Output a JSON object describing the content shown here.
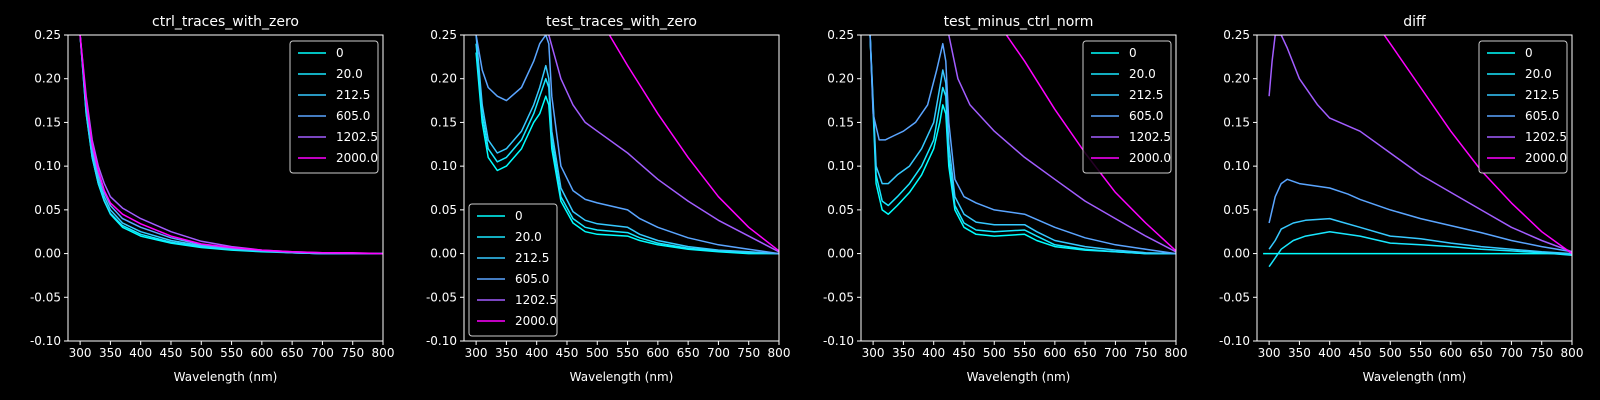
{
  "figure": {
    "background": "#000000",
    "foreground": "#ffffff"
  },
  "chart_data": [
    {
      "type": "line",
      "title": "ctrl_traces_with_zero",
      "xlabel": "Wavelength (nm)",
      "ylabel": "",
      "xlim": [
        280,
        800
      ],
      "ylim": [
        -0.1,
        0.25
      ],
      "xticks": [
        300,
        350,
        400,
        450,
        500,
        550,
        600,
        650,
        700,
        750,
        800
      ],
      "yticks": [
        -0.1,
        -0.05,
        0.0,
        0.05,
        0.1,
        0.15,
        0.2,
        0.25
      ],
      "legend": "upper right",
      "series": [
        {
          "name": "0",
          "color": "#00ffff",
          "x": [
            300,
            310,
            320,
            330,
            340,
            350,
            370,
            400,
            450,
            500,
            550,
            600,
            650,
            700,
            750,
            800
          ],
          "y": [
            0.25,
            0.16,
            0.11,
            0.08,
            0.06,
            0.045,
            0.03,
            0.02,
            0.012,
            0.007,
            0.004,
            0.002,
            0.001,
            0.0,
            0.0,
            0.0
          ]
        },
        {
          "name": "20.0",
          "color": "#18e7ff",
          "x": [
            300,
            310,
            320,
            330,
            340,
            350,
            370,
            400,
            450,
            500,
            550,
            600,
            650,
            700,
            750,
            800
          ],
          "y": [
            0.25,
            0.16,
            0.11,
            0.08,
            0.06,
            0.046,
            0.032,
            0.022,
            0.013,
            0.008,
            0.005,
            0.003,
            0.001,
            0.0,
            0.0,
            0.0
          ]
        },
        {
          "name": "212.5",
          "color": "#36c9ff",
          "x": [
            300,
            310,
            320,
            330,
            340,
            350,
            370,
            400,
            450,
            500,
            550,
            600,
            650,
            700,
            750,
            800
          ],
          "y": [
            0.25,
            0.165,
            0.115,
            0.085,
            0.065,
            0.05,
            0.035,
            0.025,
            0.015,
            0.009,
            0.005,
            0.003,
            0.001,
            0.0,
            0.0,
            0.0
          ]
        },
        {
          "name": "605.0",
          "color": "#5aa5ff",
          "x": [
            300,
            310,
            320,
            330,
            340,
            350,
            370,
            400,
            450,
            500,
            550,
            600,
            650,
            700,
            750,
            800
          ],
          "y": [
            0.25,
            0.17,
            0.12,
            0.09,
            0.07,
            0.055,
            0.04,
            0.03,
            0.018,
            0.01,
            0.006,
            0.003,
            0.001,
            0.0,
            0.0,
            0.0
          ]
        },
        {
          "name": "1202.5",
          "color": "#a25dff",
          "x": [
            300,
            310,
            320,
            330,
            340,
            350,
            370,
            400,
            450,
            500,
            550,
            600,
            650,
            700,
            750,
            800
          ],
          "y": [
            0.25,
            0.18,
            0.13,
            0.1,
            0.08,
            0.065,
            0.052,
            0.04,
            0.025,
            0.014,
            0.008,
            0.004,
            0.002,
            0.001,
            0.0,
            0.0
          ]
        },
        {
          "name": "2000.0",
          "color": "#ff00ff",
          "x": [
            300,
            310,
            320,
            330,
            340,
            350,
            370,
            400,
            450,
            500,
            550,
            600,
            650,
            700,
            750,
            800
          ],
          "y": [
            0.25,
            0.175,
            0.125,
            0.095,
            0.072,
            0.058,
            0.045,
            0.034,
            0.02,
            0.011,
            0.007,
            0.004,
            0.002,
            0.001,
            0.001,
            0.0
          ]
        }
      ]
    },
    {
      "type": "line",
      "title": "test_traces_with_zero",
      "xlabel": "Wavelength (nm)",
      "ylabel": "",
      "xlim": [
        280,
        800
      ],
      "ylim": [
        -0.1,
        0.25
      ],
      "xticks": [
        300,
        350,
        400,
        450,
        500,
        550,
        600,
        650,
        700,
        750,
        800
      ],
      "yticks": [
        -0.1,
        -0.05,
        0.0,
        0.05,
        0.1,
        0.15,
        0.2,
        0.25
      ],
      "legend": "lower left",
      "series": [
        {
          "name": "0",
          "color": "#00ffff",
          "x": [
            300,
            310,
            320,
            335,
            350,
            375,
            395,
            405,
            415,
            420,
            425,
            440,
            460,
            480,
            500,
            550,
            570,
            600,
            650,
            700,
            750,
            800
          ],
          "y": [
            0.23,
            0.15,
            0.11,
            0.095,
            0.1,
            0.12,
            0.15,
            0.16,
            0.18,
            0.17,
            0.12,
            0.06,
            0.035,
            0.025,
            0.022,
            0.02,
            0.015,
            0.01,
            0.005,
            0.002,
            0.0,
            0.0
          ]
        },
        {
          "name": "20.0",
          "color": "#18e7ff",
          "x": [
            300,
            310,
            320,
            335,
            350,
            375,
            395,
            405,
            415,
            420,
            425,
            440,
            460,
            480,
            500,
            550,
            570,
            600,
            650,
            700,
            750,
            800
          ],
          "y": [
            0.24,
            0.16,
            0.12,
            0.105,
            0.11,
            0.13,
            0.16,
            0.18,
            0.2,
            0.19,
            0.13,
            0.065,
            0.04,
            0.03,
            0.027,
            0.024,
            0.018,
            0.012,
            0.006,
            0.003,
            0.001,
            0.0
          ]
        },
        {
          "name": "212.5",
          "color": "#36c9ff",
          "x": [
            300,
            310,
            320,
            335,
            350,
            375,
            395,
            405,
            415,
            420,
            425,
            440,
            460,
            480,
            500,
            550,
            570,
            600,
            650,
            700,
            750,
            800
          ],
          "y": [
            0.25,
            0.17,
            0.13,
            0.115,
            0.12,
            0.14,
            0.17,
            0.19,
            0.215,
            0.2,
            0.14,
            0.075,
            0.048,
            0.038,
            0.034,
            0.03,
            0.022,
            0.015,
            0.008,
            0.004,
            0.002,
            0.0
          ]
        },
        {
          "name": "605.0",
          "color": "#5aa5ff",
          "x": [
            300,
            310,
            320,
            335,
            350,
            375,
            395,
            405,
            415,
            420,
            425,
            440,
            460,
            480,
            500,
            550,
            570,
            600,
            650,
            700,
            750,
            800
          ],
          "y": [
            0.25,
            0.21,
            0.19,
            0.18,
            0.175,
            0.19,
            0.22,
            0.24,
            0.25,
            0.24,
            0.18,
            0.1,
            0.072,
            0.062,
            0.058,
            0.05,
            0.04,
            0.03,
            0.018,
            0.01,
            0.005,
            0.0
          ]
        },
        {
          "name": "1202.5",
          "color": "#a25dff",
          "x": [
            420,
            440,
            460,
            480,
            500,
            550,
            600,
            650,
            700,
            750,
            800
          ],
          "y": [
            0.25,
            0.2,
            0.17,
            0.15,
            0.14,
            0.115,
            0.085,
            0.06,
            0.038,
            0.02,
            0.002
          ]
        },
        {
          "name": "2000.0",
          "color": "#ff00ff",
          "x": [
            520,
            550,
            600,
            650,
            700,
            750,
            800
          ],
          "y": [
            0.25,
            0.215,
            0.16,
            0.11,
            0.065,
            0.03,
            0.003
          ]
        }
      ]
    },
    {
      "type": "line",
      "title": "test_minus_ctrl_norm",
      "xlabel": "Wavelength (nm)",
      "ylabel": "",
      "xlim": [
        280,
        800
      ],
      "ylim": [
        -0.1,
        0.25
      ],
      "xticks": [
        300,
        350,
        400,
        450,
        500,
        550,
        600,
        650,
        700,
        750,
        800
      ],
      "yticks": [
        -0.1,
        -0.05,
        0.0,
        0.05,
        0.1,
        0.15,
        0.2,
        0.25
      ],
      "legend": "upper right",
      "series": [
        {
          "name": "0",
          "color": "#00ffff",
          "x": [
            295,
            305,
            315,
            325,
            340,
            360,
            380,
            400,
            410,
            415,
            420,
            425,
            435,
            450,
            470,
            500,
            550,
            570,
            600,
            650,
            700,
            750,
            800
          ],
          "y": [
            0.25,
            0.08,
            0.05,
            0.045,
            0.055,
            0.07,
            0.09,
            0.12,
            0.15,
            0.17,
            0.16,
            0.1,
            0.05,
            0.03,
            0.022,
            0.02,
            0.022,
            0.015,
            0.008,
            0.004,
            0.002,
            0.0,
            0.0
          ]
        },
        {
          "name": "20.0",
          "color": "#18e7ff",
          "x": [
            295,
            305,
            315,
            325,
            340,
            360,
            380,
            400,
            410,
            415,
            420,
            425,
            435,
            450,
            470,
            500,
            550,
            570,
            600,
            650,
            700,
            750,
            800
          ],
          "y": [
            0.25,
            0.09,
            0.06,
            0.055,
            0.065,
            0.08,
            0.1,
            0.13,
            0.17,
            0.19,
            0.18,
            0.11,
            0.055,
            0.035,
            0.027,
            0.025,
            0.027,
            0.02,
            0.01,
            0.005,
            0.002,
            0.0,
            0.0
          ]
        },
        {
          "name": "212.5",
          "color": "#36c9ff",
          "x": [
            295,
            305,
            315,
            325,
            340,
            360,
            380,
            400,
            410,
            415,
            420,
            425,
            435,
            450,
            470,
            500,
            550,
            570,
            600,
            650,
            700,
            750,
            800
          ],
          "y": [
            0.25,
            0.1,
            0.08,
            0.08,
            0.09,
            0.1,
            0.12,
            0.15,
            0.19,
            0.21,
            0.195,
            0.125,
            0.065,
            0.045,
            0.036,
            0.033,
            0.033,
            0.025,
            0.015,
            0.008,
            0.004,
            0.001,
            0.0
          ]
        },
        {
          "name": "605.0",
          "color": "#5aa5ff",
          "x": [
            295,
            300,
            310,
            320,
            335,
            350,
            370,
            390,
            405,
            415,
            420,
            425,
            435,
            450,
            470,
            500,
            550,
            600,
            650,
            700,
            750,
            800
          ],
          "y": [
            0.25,
            0.16,
            0.13,
            0.13,
            0.135,
            0.14,
            0.15,
            0.17,
            0.21,
            0.24,
            0.22,
            0.15,
            0.085,
            0.065,
            0.058,
            0.05,
            0.045,
            0.03,
            0.018,
            0.01,
            0.005,
            0.0
          ]
        },
        {
          "name": "1202.5",
          "color": "#a25dff",
          "x": [
            425,
            440,
            460,
            480,
            500,
            550,
            600,
            650,
            700,
            750,
            800
          ],
          "y": [
            0.25,
            0.2,
            0.17,
            0.155,
            0.14,
            0.11,
            0.085,
            0.06,
            0.04,
            0.02,
            0.002
          ]
        },
        {
          "name": "2000.0",
          "color": "#ff00ff",
          "x": [
            520,
            550,
            600,
            650,
            700,
            750,
            800
          ],
          "y": [
            0.25,
            0.22,
            0.165,
            0.115,
            0.07,
            0.035,
            0.003
          ]
        }
      ]
    },
    {
      "type": "line",
      "title": "diff",
      "xlabel": "Wavelength (nm)",
      "ylabel": "",
      "xlim": [
        280,
        800
      ],
      "ylim": [
        -0.1,
        0.25
      ],
      "xticks": [
        300,
        350,
        400,
        450,
        500,
        550,
        600,
        650,
        700,
        750,
        800
      ],
      "yticks": [
        -0.1,
        -0.05,
        0.0,
        0.05,
        0.1,
        0.15,
        0.2,
        0.25
      ],
      "legend": "upper right",
      "series": [
        {
          "name": "0",
          "color": "#00ffff",
          "x": [
            290,
            800
          ],
          "y": [
            0.0,
            0.0
          ]
        },
        {
          "name": "20.0",
          "color": "#18e7ff",
          "x": [
            300,
            310,
            320,
            340,
            360,
            400,
            450,
            500,
            550,
            600,
            650,
            700,
            750,
            800
          ],
          "y": [
            -0.015,
            -0.005,
            0.005,
            0.015,
            0.02,
            0.025,
            0.02,
            0.012,
            0.01,
            0.008,
            0.005,
            0.003,
            0.001,
            -0.002
          ]
        },
        {
          "name": "212.5",
          "color": "#36c9ff",
          "x": [
            300,
            310,
            320,
            340,
            360,
            400,
            420,
            450,
            500,
            550,
            600,
            650,
            700,
            750,
            800
          ],
          "y": [
            0.005,
            0.015,
            0.028,
            0.035,
            0.038,
            0.04,
            0.036,
            0.03,
            0.02,
            0.017,
            0.012,
            0.008,
            0.005,
            0.002,
            0.0
          ]
        },
        {
          "name": "605.0",
          "color": "#5aa5ff",
          "x": [
            300,
            310,
            320,
            330,
            350,
            400,
            430,
            450,
            500,
            550,
            600,
            650,
            700,
            750,
            800
          ],
          "y": [
            0.035,
            0.065,
            0.08,
            0.085,
            0.08,
            0.075,
            0.068,
            0.062,
            0.05,
            0.04,
            0.032,
            0.024,
            0.015,
            0.008,
            0.002
          ]
        },
        {
          "name": "1202.5",
          "color": "#a25dff",
          "x": [
            300,
            305,
            310,
            320,
            330,
            350,
            380,
            400,
            450,
            500,
            550,
            600,
            650,
            700,
            750,
            800
          ],
          "y": [
            0.18,
            0.22,
            0.25,
            0.25,
            0.235,
            0.2,
            0.17,
            0.155,
            0.14,
            0.115,
            0.09,
            0.07,
            0.05,
            0.03,
            0.015,
            0.002
          ]
        },
        {
          "name": "2000.0",
          "color": "#ff00ff",
          "x": [
            490,
            500,
            550,
            600,
            650,
            700,
            750,
            800
          ],
          "y": [
            0.25,
            0.24,
            0.19,
            0.14,
            0.095,
            0.058,
            0.025,
            0.0
          ]
        }
      ]
    }
  ]
}
